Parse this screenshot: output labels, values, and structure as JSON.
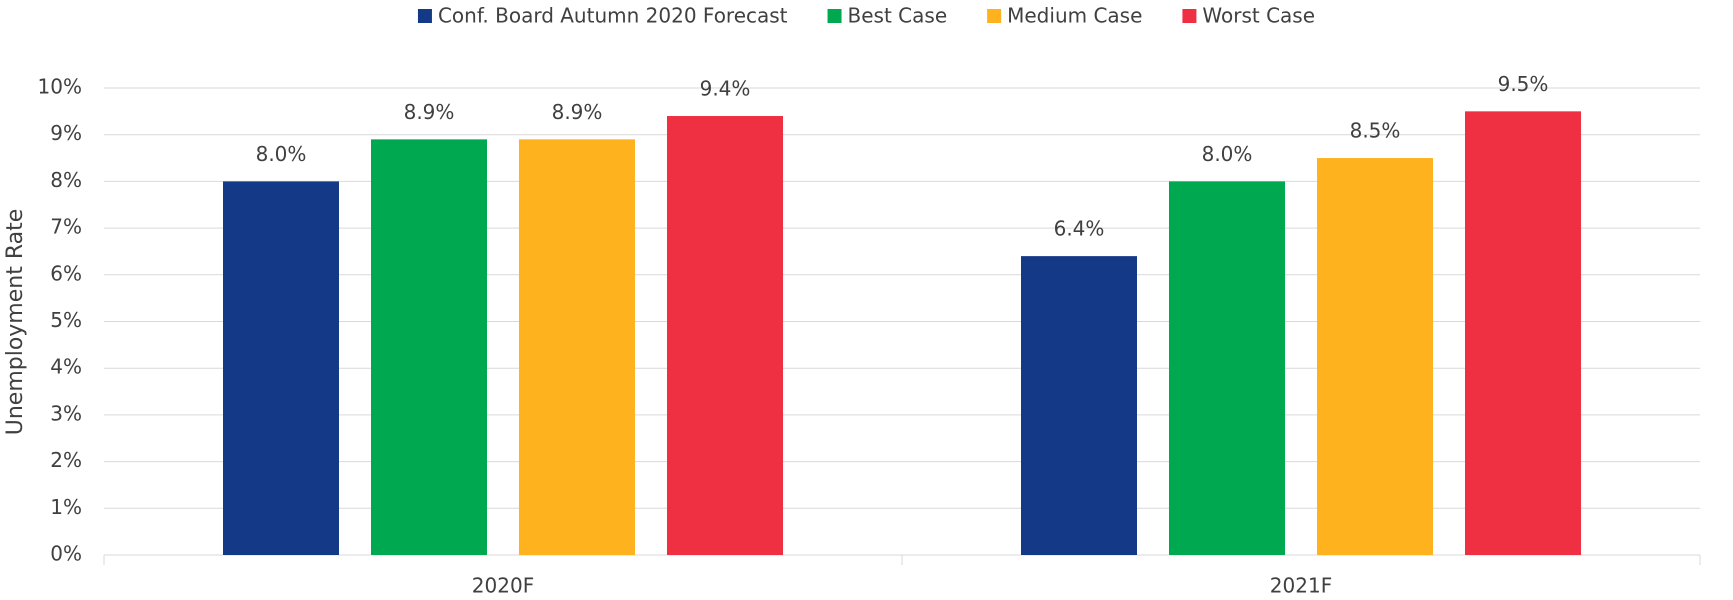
{
  "chart_data": {
    "type": "bar",
    "y_label": "Unemployment Rate",
    "categories": [
      "2020F",
      "2021F"
    ],
    "series": [
      {
        "name": "Conf. Board Autumn 2020 Forecast",
        "color": "#143a87",
        "values": [
          8.0,
          6.4
        ],
        "value_labels": [
          "8.0%",
          "6.4%"
        ]
      },
      {
        "name": "Best Case",
        "color": "#00a94f",
        "values": [
          8.9,
          8.0
        ],
        "value_labels": [
          "8.9%",
          "8.0%"
        ]
      },
      {
        "name": "Medium Case",
        "color": "#fdb21e",
        "values": [
          8.9,
          8.5
        ],
        "value_labels": [
          "8.9%",
          "8.5%"
        ]
      },
      {
        "name": "Worst Case",
        "color": "#ef3042",
        "values": [
          9.4,
          9.5
        ],
        "value_labels": [
          "9.4%",
          "9.5%"
        ]
      }
    ],
    "ylim": [
      0,
      10
    ],
    "yticks": [
      {
        "value": 0,
        "label": "0%"
      },
      {
        "value": 1,
        "label": "1%"
      },
      {
        "value": 2,
        "label": "2%"
      },
      {
        "value": 3,
        "label": "3%"
      },
      {
        "value": 4,
        "label": "4%"
      },
      {
        "value": 5,
        "label": "5%"
      },
      {
        "value": 6,
        "label": "6%"
      },
      {
        "value": 7,
        "label": "7%"
      },
      {
        "value": 8,
        "label": "8%"
      },
      {
        "value": 9,
        "label": "9%"
      },
      {
        "value": 10,
        "label": "10%"
      }
    ],
    "grid": true,
    "legend": "top"
  }
}
